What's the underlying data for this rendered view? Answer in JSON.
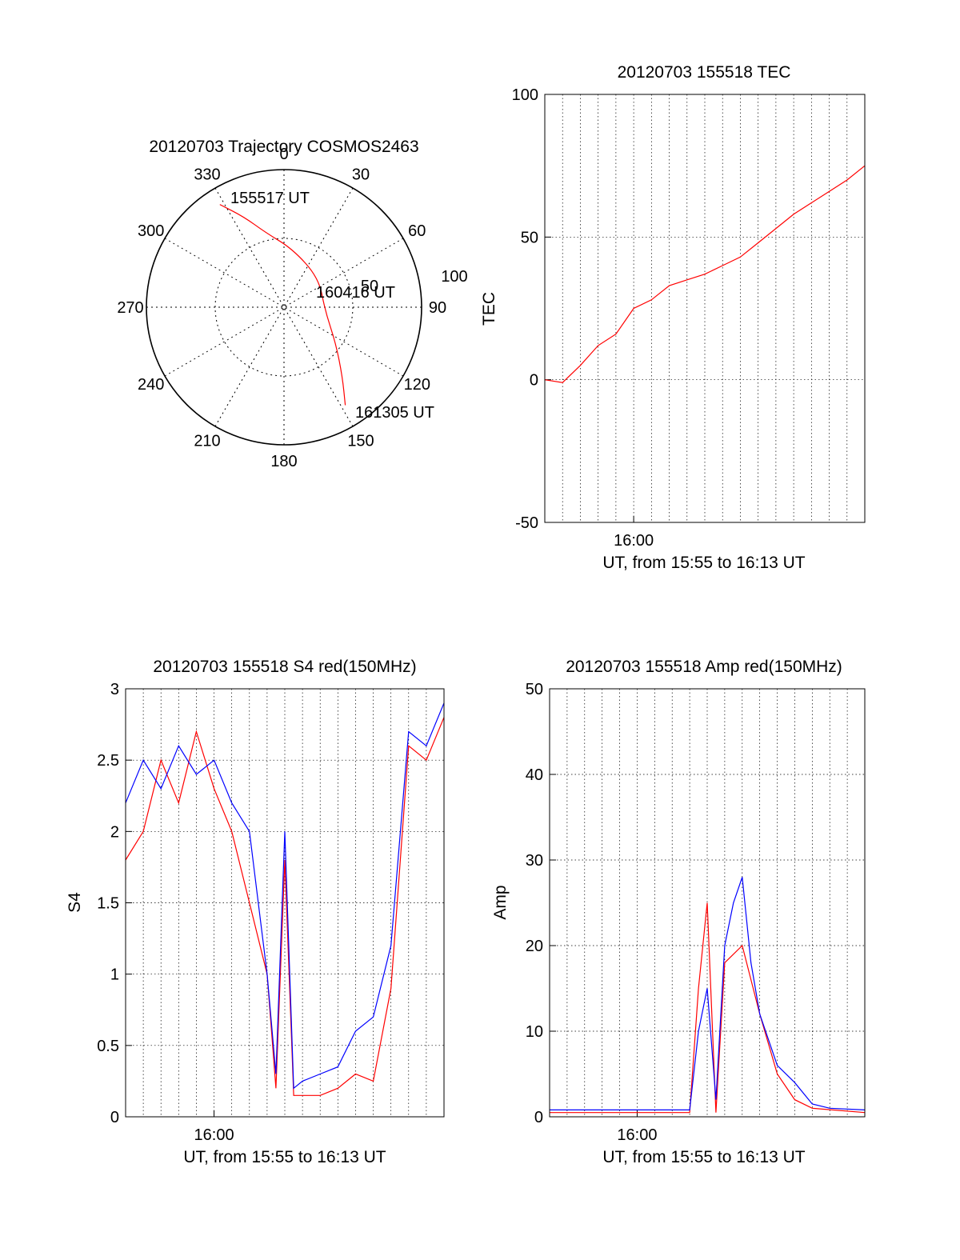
{
  "chart_data": [
    {
      "type": "polar",
      "title": "20120703 Trajectory COSMOS2463",
      "azimuth_labels": [
        "0",
        "30",
        "60",
        "90",
        "120",
        "150",
        "180",
        "210",
        "240",
        "270",
        "300",
        "330"
      ],
      "radial_labels": [
        "50",
        "100"
      ],
      "annotations": [
        "155517 UT",
        "160416 UT",
        "161305 UT"
      ],
      "series": [
        {
          "color": "#ff0000",
          "points": [
            {
              "az": 328,
              "r": 88
            },
            {
              "az": 336,
              "r": 72
            },
            {
              "az": 346,
              "r": 56
            },
            {
              "az": 8,
              "r": 43
            },
            {
              "az": 50,
              "r": 33
            },
            {
              "az": 95,
              "r": 30
            },
            {
              "az": 125,
              "r": 46
            },
            {
              "az": 140,
              "r": 66
            },
            {
              "az": 148,
              "r": 84
            }
          ]
        }
      ]
    },
    {
      "type": "line",
      "title": "20120703 155518 TEC",
      "xlabel": "UT, from 15:55 to 16:13 UT",
      "ylabel": "TEC",
      "xlim": [
        "15:55",
        "16:13"
      ],
      "ylim": [
        -50,
        100
      ],
      "yticks": [
        "-50",
        "0",
        "50",
        "100"
      ],
      "xticks": [
        {
          "t": "16:00",
          "label": "16:00"
        }
      ],
      "grid": true,
      "series": [
        {
          "color": "#ff0000",
          "points": [
            [
              "15:55",
              0
            ],
            [
              "15:56",
              -1
            ],
            [
              "15:57",
              5
            ],
            [
              "15:58",
              12
            ],
            [
              "15:59",
              16
            ],
            [
              "16:00",
              25
            ],
            [
              "16:01",
              28
            ],
            [
              "16:02",
              33
            ],
            [
              "16:03",
              35
            ],
            [
              "16:04",
              37
            ],
            [
              "16:05",
              40
            ],
            [
              "16:06",
              43
            ],
            [
              "16:07",
              48
            ],
            [
              "16:08",
              53
            ],
            [
              "16:09",
              58
            ],
            [
              "16:10",
              62
            ],
            [
              "16:11",
              66
            ],
            [
              "16:12",
              70
            ],
            [
              "16:13",
              75
            ]
          ]
        }
      ]
    },
    {
      "type": "line",
      "title": "20120703 155518 S4 red(150MHz)",
      "xlabel": "UT, from 15:55 to 16:13 UT",
      "ylabel": "S4",
      "xlim": [
        "15:55",
        "16:13"
      ],
      "ylim": [
        0,
        3
      ],
      "yticks": [
        "0",
        "0.5",
        "1",
        "1.5",
        "2",
        "2.5",
        "3"
      ],
      "xticks": [
        {
          "t": "16:00",
          "label": "16:00"
        }
      ],
      "grid": true,
      "series": [
        {
          "color": "#ff0000",
          "points": [
            [
              "15:55",
              1.8
            ],
            [
              "15:56",
              2.0
            ],
            [
              "15:57",
              2.5
            ],
            [
              "15:58",
              2.2
            ],
            [
              "15:59",
              2.7
            ],
            [
              "16:00",
              2.3
            ],
            [
              "16:01",
              2.0
            ],
            [
              "16:02",
              1.5
            ],
            [
              "16:03",
              1.0
            ],
            [
              "16:03.5",
              0.2
            ],
            [
              "16:04",
              1.8
            ],
            [
              "16:04.5",
              0.15
            ],
            [
              "16:05",
              0.15
            ],
            [
              "16:06",
              0.15
            ],
            [
              "16:07",
              0.2
            ],
            [
              "16:08",
              0.3
            ],
            [
              "16:09",
              0.25
            ],
            [
              "16:10",
              0.9
            ],
            [
              "16:11",
              2.6
            ],
            [
              "16:12",
              2.5
            ],
            [
              "16:13",
              2.8
            ]
          ]
        },
        {
          "color": "#0000ff",
          "points": [
            [
              "15:55",
              2.2
            ],
            [
              "15:56",
              2.5
            ],
            [
              "15:57",
              2.3
            ],
            [
              "15:58",
              2.6
            ],
            [
              "15:59",
              2.4
            ],
            [
              "16:00",
              2.5
            ],
            [
              "16:01",
              2.2
            ],
            [
              "16:02",
              2.0
            ],
            [
              "16:03",
              1.0
            ],
            [
              "16:03.5",
              0.3
            ],
            [
              "16:04",
              2.0
            ],
            [
              "16:04.5",
              0.2
            ],
            [
              "16:05",
              0.25
            ],
            [
              "16:06",
              0.3
            ],
            [
              "16:07",
              0.35
            ],
            [
              "16:08",
              0.6
            ],
            [
              "16:09",
              0.7
            ],
            [
              "16:10",
              1.2
            ],
            [
              "16:11",
              2.7
            ],
            [
              "16:12",
              2.6
            ],
            [
              "16:13",
              2.9
            ]
          ]
        }
      ]
    },
    {
      "type": "line",
      "title": "20120703 155518 Amp red(150MHz)",
      "xlabel": "UT, from 15:55 to 16:13 UT",
      "ylabel": "Amp",
      "xlim": [
        "15:55",
        "16:13"
      ],
      "ylim": [
        0,
        50
      ],
      "yticks": [
        "0",
        "10",
        "20",
        "30",
        "40",
        "50"
      ],
      "xticks": [
        {
          "t": "16:00",
          "label": "16:00"
        }
      ],
      "grid": true,
      "series": [
        {
          "color": "#ff0000",
          "points": [
            [
              "15:55",
              0.5
            ],
            [
              "16:03",
              0.5
            ],
            [
              "16:03.5",
              15
            ],
            [
              "16:04",
              25
            ],
            [
              "16:04.5",
              0.5
            ],
            [
              "16:05",
              18
            ],
            [
              "16:06",
              20
            ],
            [
              "16:07",
              12
            ],
            [
              "16:08",
              5
            ],
            [
              "16:09",
              2
            ],
            [
              "16:10",
              1
            ],
            [
              "16:13",
              0.5
            ]
          ]
        },
        {
          "color": "#0000ff",
          "points": [
            [
              "15:55",
              0.8
            ],
            [
              "16:03",
              0.8
            ],
            [
              "16:03.5",
              10
            ],
            [
              "16:04",
              15
            ],
            [
              "16:04.5",
              2
            ],
            [
              "16:05",
              20
            ],
            [
              "16:05.5",
              25
            ],
            [
              "16:06",
              28
            ],
            [
              "16:06.5",
              18
            ],
            [
              "16:07",
              12
            ],
            [
              "16:08",
              6
            ],
            [
              "16:09",
              4
            ],
            [
              "16:10",
              1.5
            ],
            [
              "16:11",
              1
            ],
            [
              "16:13",
              0.8
            ]
          ]
        }
      ]
    }
  ]
}
